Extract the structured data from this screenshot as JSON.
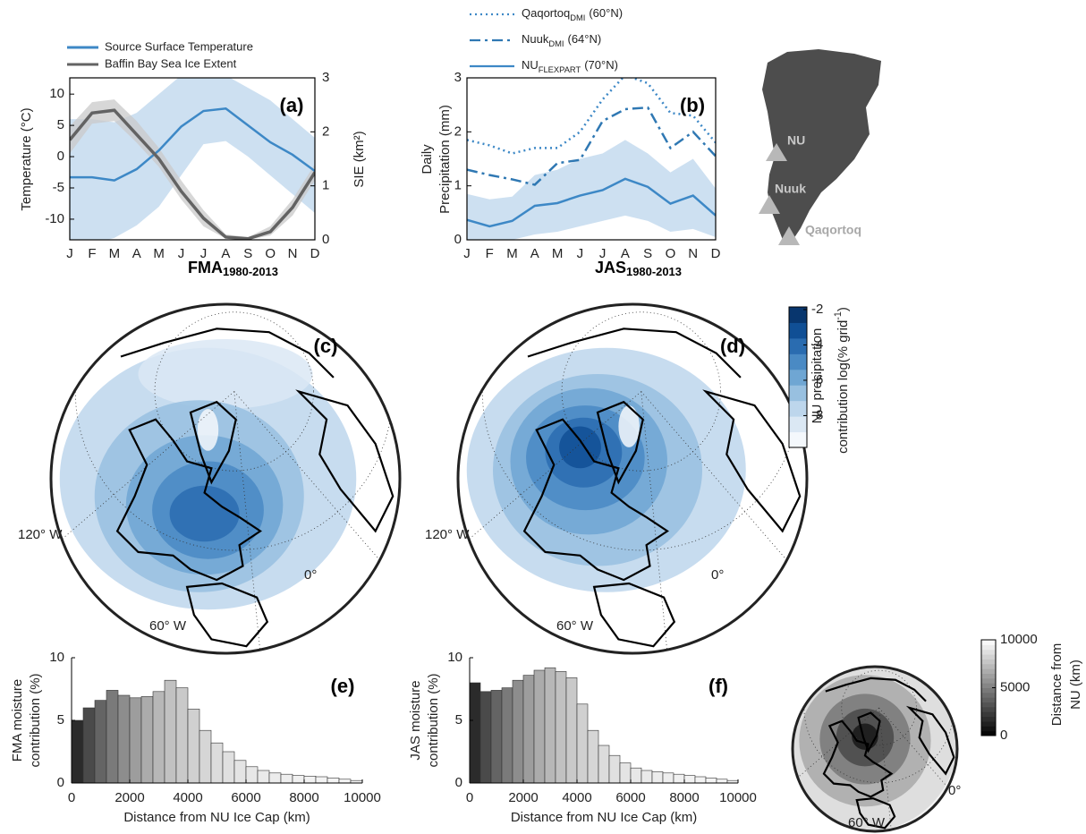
{
  "chart_data": [
    {
      "type": "line",
      "title": "(a)",
      "categories": [
        "J",
        "F",
        "M",
        "A",
        "M",
        "J",
        "J",
        "A",
        "S",
        "O",
        "N",
        "D"
      ],
      "ylabel": "Temperature (°C)",
      "y2label": "SIE (km²)",
      "ylim": [
        -13.3,
        12.6
      ],
      "yticks": [
        -10,
        -5,
        0,
        5,
        10
      ],
      "y2lim": [
        0,
        3
      ],
      "y2ticks": [
        0,
        1,
        2,
        3
      ],
      "series": [
        {
          "name": "Source Surface Temperature",
          "color": "#3d88c6",
          "band_color": "#bcd6ec",
          "dash": "solid",
          "values": [
            -3.3,
            -3.3,
            -3.8,
            -2.0,
            1.0,
            4.8,
            7.3,
            7.7,
            5.0,
            2.3,
            0.3,
            -2.3
          ],
          "lower": [
            -14,
            -14,
            -13,
            -11,
            -8,
            -3,
            2,
            2.5,
            0,
            -3,
            -6,
            -9
          ],
          "upper": [
            6,
            6,
            5.5,
            7,
            10,
            13,
            14,
            13,
            11,
            9,
            6,
            3
          ]
        },
        {
          "name": "Baffin Bay Sea Ice Extent",
          "color": "#636363",
          "band_color": "#c9c9c9",
          "dash": "solid",
          "axis": "y2",
          "values": [
            1.85,
            2.35,
            2.4,
            1.95,
            1.5,
            0.9,
            0.4,
            0.05,
            0.02,
            0.15,
            0.6,
            1.25
          ],
          "lower": [
            1.6,
            2.15,
            2.2,
            1.8,
            1.35,
            0.75,
            0.25,
            0.02,
            0,
            0.08,
            0.45,
            1.1
          ],
          "upper": [
            2.1,
            2.55,
            2.6,
            2.2,
            1.7,
            1.1,
            0.55,
            0.1,
            0.05,
            0.25,
            0.75,
            1.4
          ]
        }
      ]
    },
    {
      "type": "line",
      "title": "(b)",
      "categories": [
        "J",
        "F",
        "M",
        "A",
        "M",
        "J",
        "J",
        "A",
        "S",
        "O",
        "N",
        "D"
      ],
      "ylabel": [
        "Daily",
        "Precipitation (mm)"
      ],
      "ylim": [
        0,
        3
      ],
      "yticks": [
        0,
        1,
        2,
        3
      ],
      "series": [
        {
          "name": "Qaqortoq",
          "name_sub": "DMI",
          "name_note": "(60°N)",
          "color": "#3d88c6",
          "dash": "dotted",
          "values": [
            1.85,
            1.75,
            1.6,
            1.7,
            1.7,
            2.0,
            2.6,
            3.05,
            2.9,
            2.35,
            2.3,
            1.8
          ]
        },
        {
          "name": "Nuuk",
          "name_sub": "DMI",
          "name_note": "(64°N)",
          "color": "#2f78b3",
          "dash": "dashdot",
          "values": [
            1.3,
            1.2,
            1.12,
            1.02,
            1.42,
            1.48,
            2.2,
            2.42,
            2.45,
            1.7,
            2.0,
            1.55
          ]
        },
        {
          "name": "NU",
          "name_sub": "FLEXPART",
          "name_note": "(70°N)",
          "color": "#3d88c6",
          "band_color": "#bcd6ec",
          "dash": "solid",
          "values": [
            0.37,
            0.25,
            0.35,
            0.63,
            0.68,
            0.82,
            0.92,
            1.13,
            0.98,
            0.67,
            0.82,
            0.45
          ],
          "lower": [
            0,
            0,
            0,
            0.1,
            0.15,
            0.25,
            0.35,
            0.45,
            0.35,
            0.15,
            0.2,
            0.05
          ],
          "upper": [
            0.85,
            0.75,
            0.8,
            1.2,
            1.3,
            1.5,
            1.6,
            1.85,
            1.6,
            1.25,
            1.5,
            0.95
          ]
        }
      ]
    },
    {
      "type": "histogram",
      "title": "(e)",
      "ylabel": [
        "FMA moisture",
        "contribution (%)"
      ],
      "xlabel": "Distance from NU Ice Cap (km)",
      "bins": [
        0,
        400,
        800,
        1200,
        1600,
        2000,
        2400,
        2800,
        3200,
        3600,
        4000,
        4400,
        4800,
        5200,
        5600,
        6000,
        6400,
        6800,
        7200,
        7600,
        8000,
        8400,
        8800,
        9200,
        9600,
        10000
      ],
      "values": [
        5.0,
        6.0,
        6.6,
        7.4,
        7.0,
        6.8,
        6.9,
        7.3,
        8.2,
        7.6,
        5.9,
        4.2,
        3.2,
        2.5,
        1.8,
        1.3,
        1.0,
        0.8,
        0.7,
        0.6,
        0.55,
        0.5,
        0.4,
        0.3,
        0.2
      ],
      "colormap": [
        "#1a1a1a",
        "#fafafa"
      ],
      "xlim": [
        0,
        10000
      ],
      "xticks": [
        0,
        2000,
        4000,
        6000,
        8000,
        10000
      ],
      "ylim": [
        0,
        10
      ],
      "yticks": [
        0,
        5,
        10
      ]
    },
    {
      "type": "histogram",
      "title": "(f)",
      "ylabel": [
        "JAS moisture",
        "contribution (%)"
      ],
      "xlabel": "Distance from NU Ice Cap (km)",
      "bins": [
        0,
        400,
        800,
        1200,
        1600,
        2000,
        2400,
        2800,
        3200,
        3600,
        4000,
        4400,
        4800,
        5200,
        5600,
        6000,
        6400,
        6800,
        7200,
        7600,
        8000,
        8400,
        8800,
        9200,
        9600,
        10000
      ],
      "values": [
        8.0,
        7.3,
        7.4,
        7.6,
        8.2,
        8.6,
        9.0,
        9.2,
        8.9,
        8.4,
        6.3,
        4.2,
        3.0,
        2.2,
        1.6,
        1.2,
        1.0,
        0.9,
        0.8,
        0.7,
        0.6,
        0.5,
        0.4,
        0.3,
        0.2
      ],
      "colormap": [
        "#1a1a1a",
        "#fafafa"
      ],
      "xlim": [
        0,
        10000
      ],
      "xticks": [
        0,
        2000,
        4000,
        6000,
        8000,
        10000
      ],
      "ylim": [
        0,
        10
      ],
      "yticks": [
        0,
        5,
        10
      ]
    }
  ],
  "site_map": {
    "labels": [
      "NU",
      "Nuuk",
      "Qaqortoq"
    ]
  },
  "maps": [
    {
      "title": "FMA",
      "title_sub": "1980-2013",
      "panel": "(c)",
      "lon_labels": [
        "120° W",
        "0°",
        "60° W"
      ]
    },
    {
      "title": "JAS",
      "title_sub": "1980-2013",
      "panel": "(d)",
      "lon_labels": [
        "120° W",
        "0°",
        "60° W"
      ]
    }
  ],
  "precip_colorbar": {
    "label_lines": [
      "NU precipitation",
      "contribution log(% grid"
    ],
    "label_sup": "-1",
    "label_end": ")",
    "ylim": [
      -9.8,
      -1.85
    ],
    "yticks": [
      -2,
      -4,
      -6,
      -8
    ],
    "colors": [
      "#f4f8fc",
      "#dbe8f4",
      "#bdd6ec",
      "#98c0e0",
      "#6fa6d3",
      "#4a8ac4",
      "#2a6cb0",
      "#104f95",
      "#08366e"
    ]
  },
  "distance_map": {
    "lon_labels": [
      "0°",
      "60° W"
    ],
    "colorbar": {
      "label_lines": [
        "Distance from",
        "NU (km)"
      ],
      "ylim": [
        0,
        10000
      ],
      "yticks": [
        0,
        5000,
        10000
      ],
      "colormap": [
        "#000000",
        "#ffffff"
      ]
    }
  }
}
